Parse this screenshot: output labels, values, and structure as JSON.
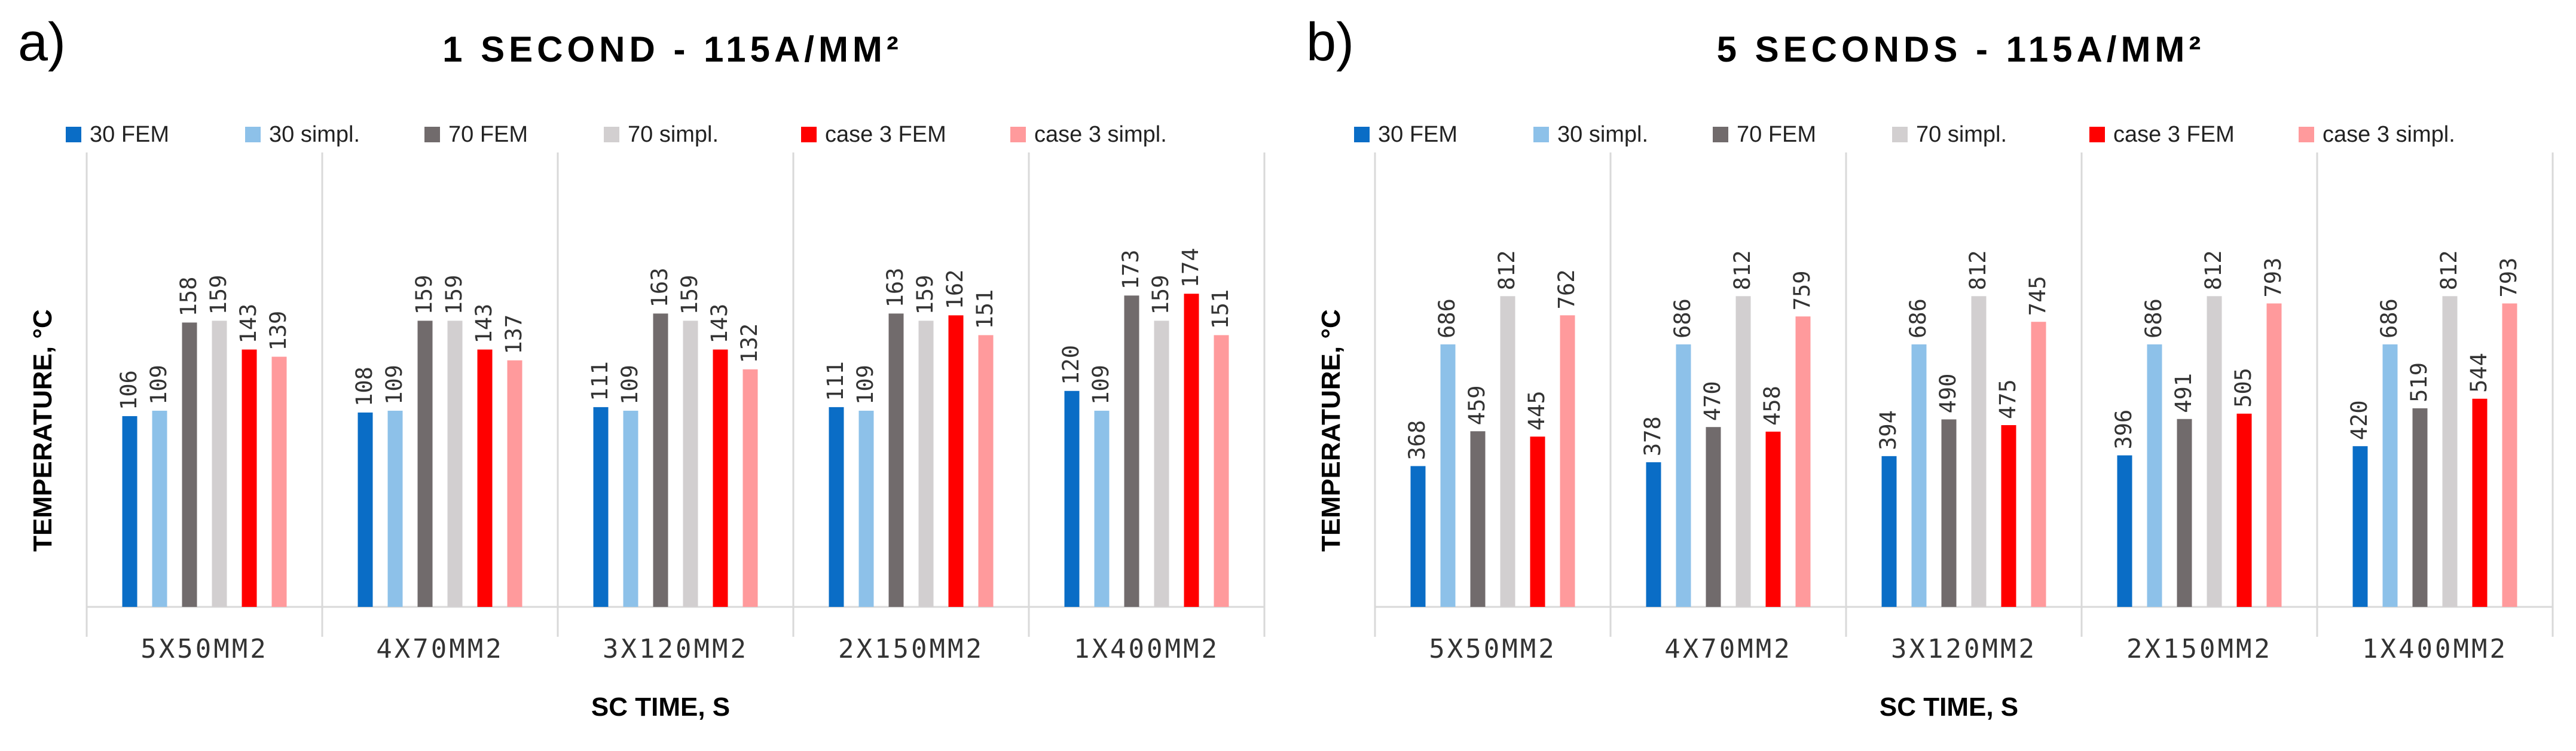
{
  "legend_items": [
    {
      "name": "30 FEM",
      "color": "#0a6dc6"
    },
    {
      "name": "30 simpl.",
      "color": "#8dc1e9"
    },
    {
      "name": "70 FEM",
      "color": "#716b6c"
    },
    {
      "name": "70 simpl.",
      "color": "#d2cfd0"
    },
    {
      "name": "case 3 FEM",
      "color": "#ff0000"
    },
    {
      "name": "case 3 simpl.",
      "color": "#ff9a9c"
    }
  ],
  "chart_data": [
    {
      "type": "bar",
      "panel_label": "a)",
      "title": "1 SECOND - 115A/MM²",
      "xlabel": "SC TIME, S",
      "ylabel": "TEMPERATURE, °C",
      "ylim": [
        0,
        200
      ],
      "categories": [
        "5X50MM2",
        "4X70MM2",
        "3X120MM2",
        "2X150MM2",
        "1X400MM2"
      ],
      "series": [
        {
          "name": "30 FEM",
          "values": [
            106,
            108,
            111,
            111,
            120
          ]
        },
        {
          "name": "30 simpl.",
          "values": [
            109,
            109,
            109,
            109,
            109
          ]
        },
        {
          "name": "70 FEM",
          "values": [
            158,
            159,
            163,
            163,
            173
          ]
        },
        {
          "name": "70 simpl.",
          "values": [
            159,
            159,
            159,
            159,
            159
          ]
        },
        {
          "name": "case 3 FEM",
          "values": [
            143,
            143,
            143,
            162,
            174
          ]
        },
        {
          "name": "case 3 simpl.",
          "values": [
            139,
            137,
            132,
            151,
            151
          ]
        }
      ]
    },
    {
      "type": "bar",
      "panel_label": "b)",
      "title": "5 SECONDS - 115A/MM²",
      "xlabel": "SC TIME, S",
      "ylabel": "TEMPERATURE, °C",
      "ylim": [
        0,
        1000
      ],
      "categories": [
        "5X50MM2",
        "4X70MM2",
        "3X120MM2",
        "2X150MM2",
        "1X400MM2"
      ],
      "series": [
        {
          "name": "30 FEM",
          "values": [
            368,
            378,
            394,
            396,
            420
          ]
        },
        {
          "name": "30 simpl.",
          "values": [
            686,
            686,
            686,
            686,
            686
          ]
        },
        {
          "name": "70 FEM",
          "values": [
            459,
            470,
            490,
            491,
            519
          ]
        },
        {
          "name": "70 simpl.",
          "values": [
            812,
            812,
            812,
            812,
            812
          ]
        },
        {
          "name": "case 3 FEM",
          "values": [
            445,
            458,
            475,
            505,
            544
          ]
        },
        {
          "name": "case 3 simpl.",
          "values": [
            762,
            759,
            745,
            793,
            793
          ]
        }
      ]
    }
  ]
}
